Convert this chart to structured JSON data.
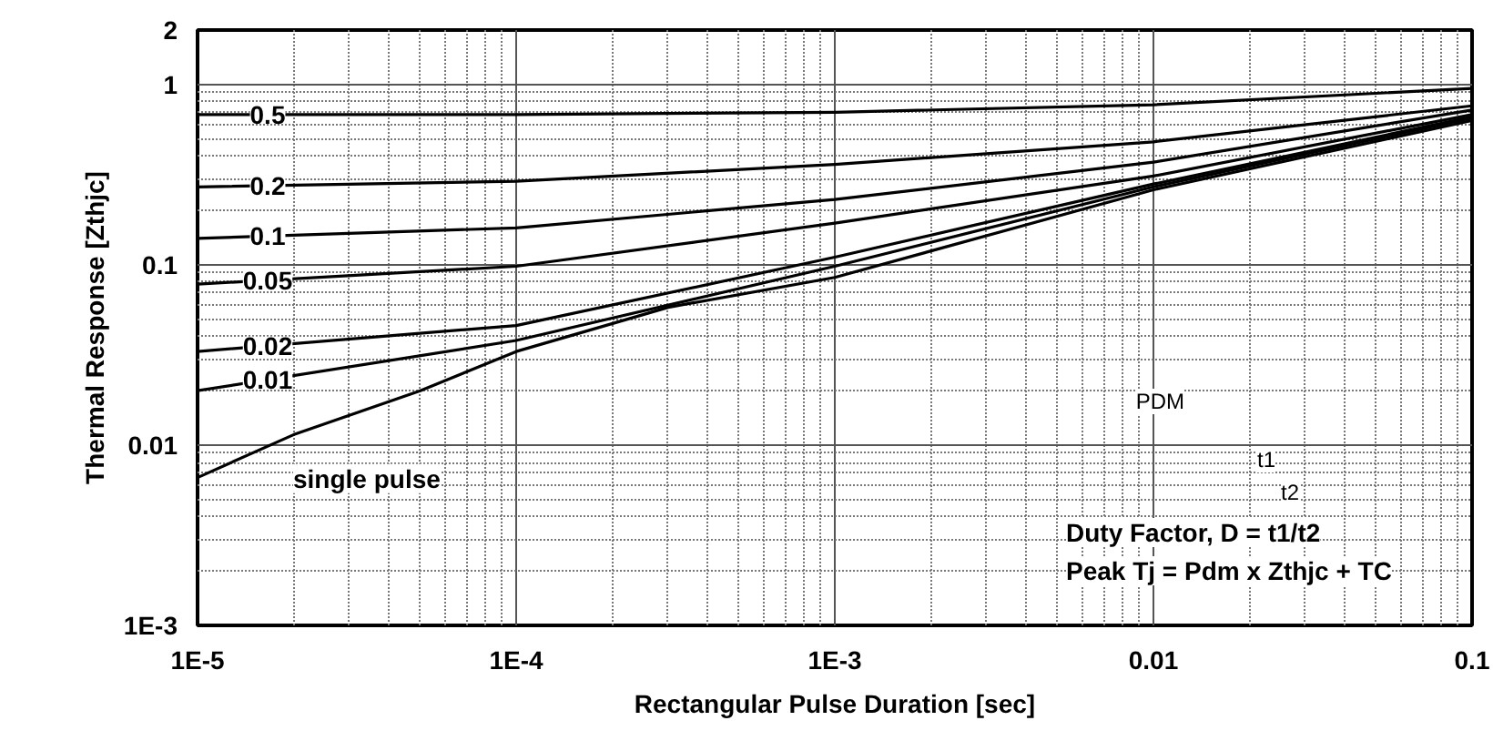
{
  "chart_data": {
    "type": "line",
    "xlabel": "Rectangular Pulse Duration [sec]",
    "ylabel": "Thermal Response [Zthjc]",
    "log": "xy",
    "grid": true,
    "xlim": [
      1e-05,
      0.1
    ],
    "ylim": [
      0.001,
      2
    ],
    "xticks": [
      {
        "value": 1e-05,
        "label": "1E-5"
      },
      {
        "value": 0.0001,
        "label": "1E-4"
      },
      {
        "value": 0.001,
        "label": "1E-3"
      },
      0.01,
      0.1
    ],
    "yticks": [
      {
        "value": 0.001,
        "label": "1E-3"
      },
      0.01,
      0.1,
      1,
      2
    ],
    "series": [
      {
        "name": "0.5",
        "color": "#000000",
        "x": [
          1e-05,
          0.0001,
          0.001,
          0.01,
          0.1
        ],
        "values": [
          0.68,
          0.68,
          0.7,
          0.77,
          0.95
        ]
      },
      {
        "name": "0.2",
        "color": "#000000",
        "x": [
          1e-05,
          0.0001,
          0.001,
          0.01,
          0.1
        ],
        "values": [
          0.27,
          0.29,
          0.36,
          0.48,
          0.76
        ]
      },
      {
        "name": "0.1",
        "color": "#000000",
        "x": [
          1e-05,
          0.0001,
          0.001,
          0.01,
          0.1
        ],
        "values": [
          0.14,
          0.16,
          0.23,
          0.37,
          0.72
        ]
      },
      {
        "name": "0.05",
        "color": "#000000",
        "x": [
          1e-05,
          0.0001,
          0.001,
          0.01,
          0.1
        ],
        "values": [
          0.078,
          0.098,
          0.17,
          0.31,
          0.68
        ]
      },
      {
        "name": "0.02",
        "color": "#000000",
        "x": [
          1e-05,
          0.0001,
          0.001,
          0.01,
          0.1
        ],
        "values": [
          0.033,
          0.046,
          0.11,
          0.28,
          0.66
        ]
      },
      {
        "name": "0.01",
        "color": "#000000",
        "x": [
          1e-05,
          0.0001,
          0.001,
          0.01,
          0.1
        ],
        "values": [
          0.02,
          0.038,
          0.098,
          0.27,
          0.65
        ]
      },
      {
        "name": "single pulse",
        "color": "#000000",
        "x": [
          1e-05,
          2e-05,
          5e-05,
          0.0001,
          0.0003,
          0.001,
          0.01,
          0.1
        ],
        "values": [
          0.0066,
          0.0114,
          0.02,
          0.033,
          0.058,
          0.085,
          0.26,
          0.63
        ]
      }
    ],
    "annotations": [
      "PDM",
      "t1",
      "t2",
      "Duty Factor, D = t1/t2",
      "Peak Tj = Pdm x Zthjc + TC"
    ]
  }
}
